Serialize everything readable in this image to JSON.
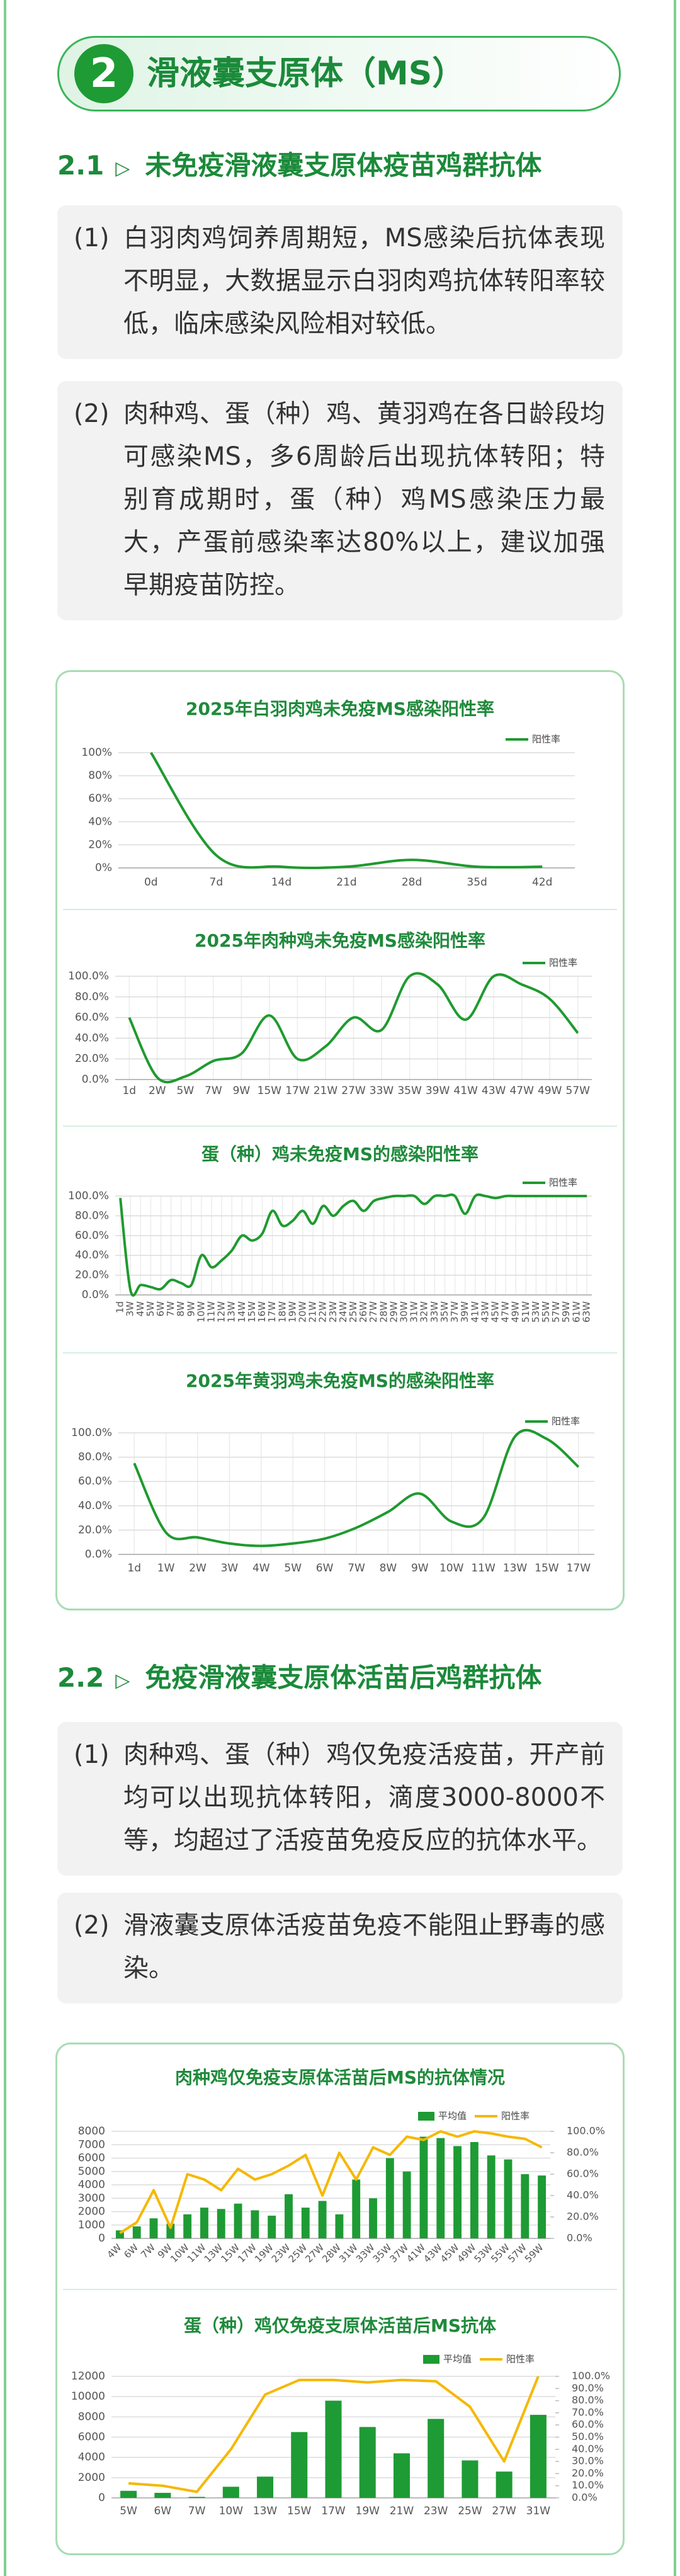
{
  "header": {
    "number": "2",
    "title": "滑液囊支原体（MS）"
  },
  "sections": [
    {
      "number": "2.1",
      "title": "未免疫滑液囊支原体疫苗鸡群抗体",
      "items": [
        {
          "label": "(1)",
          "text": "白羽肉鸡饲养周期短，MS感染后抗体表现不明显，大数据显示白羽肉鸡抗体转阳率较低，临床感染风险相对较低。"
        },
        {
          "label": "(2)",
          "text": "肉种鸡、蛋（种）鸡、黄羽鸡在各日龄段均可感染MS，多6周龄后出现抗体转阳；特别育成期时，蛋（种）鸡MS感染压力最大，产蛋前感染率达80%以上，建议加强早期疫苗防控。"
        }
      ]
    },
    {
      "number": "2.2",
      "title": "免疫滑液囊支原体活苗后鸡群抗体",
      "items": [
        {
          "label": "(1)",
          "text": "肉种鸡、蛋（种）鸡仅免疫活疫苗，开产前均可以出现抗体转阳，滴度3000-8000不等，均超过了活疫苗免疫反应的抗体水平。"
        },
        {
          "label": "(2)",
          "text": "滑液囊支原体活疫苗免疫不能阻止野毒的感染。"
        }
      ]
    }
  ],
  "chart_data": [
    {
      "type": "line",
      "title": "2025年白羽肉鸡未免疫MS感染阳性率",
      "smooth": true,
      "grid": true,
      "vertical_grid": false,
      "legend": "top-right",
      "categories": [
        "0d",
        "7d",
        "14d",
        "21d",
        "28d",
        "35d",
        "42d"
      ],
      "series": [
        {
          "name": "阳性率",
          "color": "#1f9a2f",
          "values": [
            100,
            11,
            1,
            1,
            7,
            1,
            1
          ]
        }
      ],
      "ylim": [
        0,
        100
      ],
      "yticks": [
        {
          "value": 0,
          "label": "0%"
        },
        {
          "value": 20,
          "label": "20%"
        },
        {
          "value": 40,
          "label": "40%"
        },
        {
          "value": 60,
          "label": "60%"
        },
        {
          "value": 80,
          "label": "80%"
        },
        {
          "value": 100,
          "label": "100%"
        }
      ]
    },
    {
      "type": "line",
      "title": "2025年肉种鸡未免疫MS感染阳性率",
      "smooth": true,
      "grid": true,
      "vertical_grid": true,
      "legend": "top-right",
      "categories": [
        "1d",
        "2W",
        "5W",
        "7W",
        "9W",
        "15W",
        "17W",
        "21W",
        "27W",
        "33W",
        "35W",
        "39W",
        "41W",
        "43W",
        "47W",
        "49W",
        "57W"
      ],
      "series": [
        {
          "name": "阳性率",
          "color": "#1f9a2f",
          "values": [
            60,
            2,
            3,
            18,
            25,
            62,
            20,
            32,
            60,
            48,
            100,
            92,
            58,
            100,
            92,
            78,
            45
          ]
        }
      ],
      "ylim": [
        0,
        100
      ],
      "yticks": [
        {
          "value": 0,
          "label": "0.0%"
        },
        {
          "value": 20,
          "label": "20.0%"
        },
        {
          "value": 40,
          "label": "40.0%"
        },
        {
          "value": 60,
          "label": "60.0%"
        },
        {
          "value": 80,
          "label": "80.0%"
        },
        {
          "value": 100,
          "label": "100.0%"
        }
      ]
    },
    {
      "type": "line",
      "title": "蛋（种）鸡未免疫MS的感染阳性率",
      "smooth": true,
      "grid": true,
      "vertical_grid": true,
      "legend": "top-right",
      "categories": [
        "1d",
        "3W",
        "4W",
        "5W",
        "6W",
        "7W",
        "8W",
        "9W",
        "10W",
        "11W",
        "12W",
        "13W",
        "14W",
        "15W",
        "16W",
        "17W",
        "18W",
        "19W",
        "20W",
        "21W",
        "22W",
        "23W",
        "24W",
        "25W",
        "26W",
        "27W",
        "28W",
        "29W",
        "30W",
        "31W",
        "32W",
        "33W",
        "35W",
        "37W",
        "39W",
        "41W",
        "43W",
        "45W",
        "47W",
        "49W",
        "51W",
        "53W",
        "55W",
        "57W",
        "59W",
        "61W",
        "63W"
      ],
      "series": [
        {
          "name": "阳性率",
          "color": "#1f9a2f",
          "values": [
            98,
            5,
            10,
            8,
            6,
            15,
            12,
            10,
            40,
            28,
            35,
            45,
            60,
            55,
            62,
            85,
            70,
            75,
            85,
            72,
            90,
            80,
            90,
            95,
            85,
            95,
            98,
            100,
            100,
            100,
            92,
            100,
            100,
            100,
            82,
            100,
            100,
            98,
            100,
            100,
            100,
            100,
            100,
            100,
            100,
            100,
            100
          ]
        }
      ],
      "ylim": [
        0,
        100
      ],
      "yticks": [
        {
          "value": 0,
          "label": "0.0%"
        },
        {
          "value": 20,
          "label": "20.0%"
        },
        {
          "value": 40,
          "label": "40.0%"
        },
        {
          "value": 60,
          "label": "60.0%"
        },
        {
          "value": 80,
          "label": "80.0%"
        },
        {
          "value": 100,
          "label": "100.0%"
        }
      ]
    },
    {
      "type": "line",
      "title": "2025年黄羽鸡未免疫MS的感染阳性率",
      "smooth": true,
      "grid": true,
      "vertical_grid": true,
      "legend": "top-right",
      "categories": [
        "1d",
        "1W",
        "2W",
        "3W",
        "4W",
        "5W",
        "6W",
        "7W",
        "8W",
        "9W",
        "10W",
        "11W",
        "13W",
        "15W",
        "17W"
      ],
      "series": [
        {
          "name": "阳性率",
          "color": "#1f9a2f",
          "values": [
            75,
            18,
            14,
            9,
            7,
            9,
            13,
            22,
            35,
            50,
            27,
            30,
            97,
            95,
            72
          ]
        }
      ],
      "ylim": [
        0,
        100
      ],
      "yticks": [
        {
          "value": 0,
          "label": "0.0%"
        },
        {
          "value": 20,
          "label": "20.0%"
        },
        {
          "value": 40,
          "label": "40.0%"
        },
        {
          "value": 60,
          "label": "60.0%"
        },
        {
          "value": 80,
          "label": "80.0%"
        },
        {
          "value": 100,
          "label": "100.0%"
        }
      ]
    },
    {
      "type": "combo",
      "title": "肉种鸡仅免疫支原体活苗后MS的抗体情况",
      "grid": true,
      "legend": "top-right",
      "categories": [
        "4W",
        "6W",
        "7W",
        "9W",
        "10W",
        "11W",
        "13W",
        "15W",
        "17W",
        "19W",
        "23W",
        "25W",
        "27W",
        "28W",
        "31W",
        "33W",
        "35W",
        "37W",
        "41W",
        "43W",
        "45W",
        "49W",
        "53W",
        "55W",
        "57W",
        "59W"
      ],
      "series": [
        {
          "name": "平均值",
          "type": "bar",
          "color": "#1e9b34",
          "values": [
            600,
            900,
            1500,
            1100,
            1800,
            2300,
            2200,
            2600,
            2100,
            1700,
            3300,
            2300,
            2800,
            1800,
            4400,
            3000,
            6000,
            5000,
            7600,
            7500,
            6900,
            7200,
            6200,
            5900,
            4800,
            4700
          ]
        },
        {
          "name": "阳性率",
          "type": "line",
          "axis": "y2",
          "color": "#f5b800",
          "values": [
            5,
            15,
            45,
            10,
            60,
            55,
            45,
            65,
            55,
            60,
            68,
            78,
            40,
            80,
            55,
            85,
            78,
            95,
            92,
            100,
            95,
            100,
            98,
            95,
            93,
            85
          ]
        }
      ],
      "ylim": [
        0,
        8000
      ],
      "yticks": [
        0,
        1000,
        2000,
        3000,
        4000,
        5000,
        6000,
        7000,
        8000
      ],
      "y2lim": [
        0,
        100
      ],
      "y2ticks": [
        {
          "value": 0,
          "label": "0.0%"
        },
        {
          "value": 20,
          "label": "20.0%"
        },
        {
          "value": 40,
          "label": "40.0%"
        },
        {
          "value": 60,
          "label": "60.0%"
        },
        {
          "value": 80,
          "label": "80.0%"
        },
        {
          "value": 100,
          "label": "100.0%"
        }
      ]
    },
    {
      "type": "combo",
      "title": "蛋（种）鸡仅免疫支原体活苗后MS抗体",
      "grid": true,
      "legend": "top-right",
      "categories": [
        "5W",
        "6W",
        "7W",
        "10W",
        "13W",
        "15W",
        "17W",
        "19W",
        "21W",
        "23W",
        "25W",
        "27W",
        "31W"
      ],
      "series": [
        {
          "name": "平均值",
          "type": "bar",
          "color": "#1e9b34",
          "values": [
            700,
            500,
            100,
            1100,
            2100,
            6500,
            9600,
            7000,
            4400,
            7800,
            3700,
            2600,
            8200
          ]
        },
        {
          "name": "阳性率",
          "type": "line",
          "axis": "y2",
          "color": "#f5b800",
          "values": [
            12,
            10,
            5,
            40,
            85,
            97,
            97,
            95,
            97,
            96,
            75,
            30,
            100
          ]
        }
      ],
      "ylim": [
        0,
        12000
      ],
      "yticks": [
        0,
        2000,
        4000,
        6000,
        8000,
        10000,
        12000
      ],
      "y2lim": [
        0,
        100
      ],
      "y2ticks": [
        {
          "value": 0,
          "label": "0.0%"
        },
        {
          "value": 10,
          "label": "10.0%"
        },
        {
          "value": 20,
          "label": "20.0%"
        },
        {
          "value": 30,
          "label": "30.0%"
        },
        {
          "value": 40,
          "label": "40.0%"
        },
        {
          "value": 50,
          "label": "50.0%"
        },
        {
          "value": 60,
          "label": "60.0%"
        },
        {
          "value": 70,
          "label": "70.0%"
        },
        {
          "value": 80,
          "label": "80.0%"
        },
        {
          "value": 90,
          "label": "90.0%"
        },
        {
          "value": 100,
          "label": "100.0%"
        }
      ]
    }
  ]
}
